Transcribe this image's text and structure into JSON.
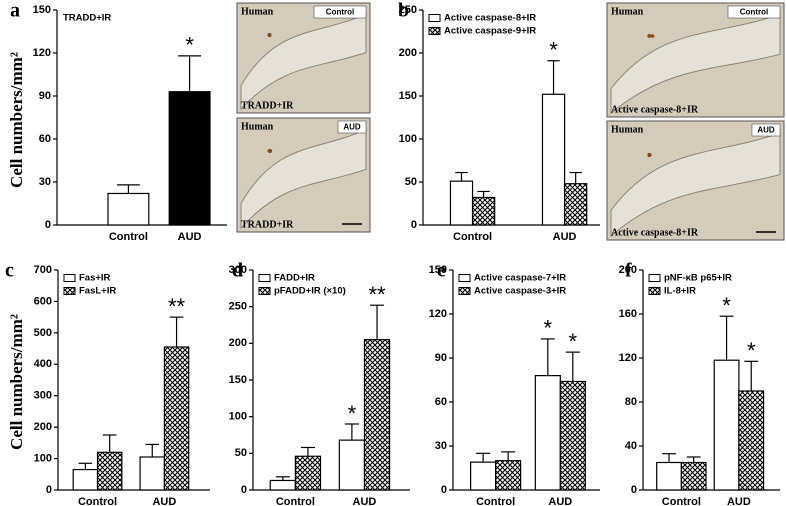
{
  "y_axis_label": "Cell numbers/mm²",
  "chart_data": [
    {
      "type": "bar",
      "panel": "a",
      "categories": [
        "Control",
        "AUD"
      ],
      "ylim": [
        0,
        150
      ],
      "yticks": [
        0,
        30,
        60,
        90,
        120,
        150
      ],
      "legend_swatches": false,
      "series": [
        {
          "name": "TRADD+IR",
          "colors": [
            "#ffffff",
            "#000000"
          ],
          "values": [
            22,
            93
          ],
          "errors": [
            6,
            25
          ],
          "stars": [
            null,
            "*"
          ]
        }
      ]
    },
    {
      "type": "bar",
      "panel": "b",
      "categories": [
        "Control",
        "AUD"
      ],
      "ylim": [
        0,
        250
      ],
      "yticks": [
        0,
        50,
        100,
        150,
        200,
        250
      ],
      "legend_swatches": true,
      "series": [
        {
          "name": "Active caspase-8+IR",
          "color": "#ffffff",
          "hatched": false,
          "values": [
            51,
            152
          ],
          "errors": [
            10,
            39
          ],
          "stars": [
            null,
            "*"
          ]
        },
        {
          "name": "Active caspase-9+IR",
          "color": "#ffffff",
          "hatched": true,
          "values": [
            32,
            48
          ],
          "errors": [
            7,
            13
          ],
          "stars": [
            null,
            null
          ]
        }
      ]
    },
    {
      "type": "bar",
      "panel": "c",
      "categories": [
        "Control",
        "AUD"
      ],
      "ylim": [
        0,
        700
      ],
      "yticks": [
        0,
        100,
        200,
        300,
        400,
        500,
        600,
        700
      ],
      "legend_swatches": true,
      "series": [
        {
          "name": "Fas+IR",
          "color": "#ffffff",
          "hatched": false,
          "values": [
            65,
            105
          ],
          "errors": [
            20,
            40
          ],
          "stars": [
            null,
            null
          ]
        },
        {
          "name": "FasL+IR",
          "color": "#ffffff",
          "hatched": true,
          "values": [
            120,
            455
          ],
          "errors": [
            55,
            95
          ],
          "stars": [
            null,
            "**"
          ]
        }
      ]
    },
    {
      "type": "bar",
      "panel": "d",
      "categories": [
        "Control",
        "AUD"
      ],
      "ylim": [
        0,
        300
      ],
      "yticks": [
        0,
        50,
        100,
        150,
        200,
        250,
        300
      ],
      "legend_swatches": true,
      "series": [
        {
          "name": "FADD+IR",
          "color": "#ffffff",
          "hatched": false,
          "values": [
            13,
            68
          ],
          "errors": [
            5,
            22
          ],
          "stars": [
            null,
            "*"
          ]
        },
        {
          "name": "pFADD+IR (×10)",
          "color": "#ffffff",
          "hatched": true,
          "values": [
            46,
            205
          ],
          "errors": [
            12,
            47
          ],
          "stars": [
            null,
            "**"
          ]
        }
      ]
    },
    {
      "type": "bar",
      "panel": "e",
      "categories": [
        "Control",
        "AUD"
      ],
      "ylim": [
        0,
        150
      ],
      "yticks": [
        0,
        30,
        60,
        90,
        120,
        150
      ],
      "legend_swatches": true,
      "series": [
        {
          "name": "Active caspase-7+IR",
          "color": "#ffffff",
          "hatched": false,
          "values": [
            19,
            78
          ],
          "errors": [
            6,
            25
          ],
          "stars": [
            null,
            "*"
          ]
        },
        {
          "name": "Active caspase-3+IR",
          "color": "#ffffff",
          "hatched": true,
          "values": [
            20,
            74
          ],
          "errors": [
            6,
            20
          ],
          "stars": [
            null,
            "*"
          ]
        }
      ]
    },
    {
      "type": "bar",
      "panel": "f",
      "categories": [
        "Control",
        "AUD"
      ],
      "ylim": [
        0,
        200
      ],
      "yticks": [
        0,
        40,
        80,
        120,
        160,
        200
      ],
      "legend_swatches": true,
      "series": [
        {
          "name": "pNF-κB p65+IR",
          "color": "#ffffff",
          "hatched": false,
          "values": [
            25,
            118
          ],
          "errors": [
            8,
            40
          ],
          "stars": [
            null,
            "*"
          ]
        },
        {
          "name": "IL-8+IR",
          "color": "#ffffff",
          "hatched": true,
          "values": [
            25,
            90
          ],
          "errors": [
            5,
            27
          ],
          "stars": [
            null,
            "*"
          ]
        }
      ]
    }
  ],
  "images": [
    {
      "species": "Human",
      "group": "Control",
      "stain": "TRADD+IR"
    },
    {
      "species": "Human",
      "group": "AUD",
      "stain": "TRADD+IR"
    },
    {
      "species": "Human",
      "group": "Control",
      "stain": "Active caspase-8+IR"
    },
    {
      "species": "Human",
      "group": "AUD",
      "stain": "Active caspase-8+IR"
    }
  ]
}
